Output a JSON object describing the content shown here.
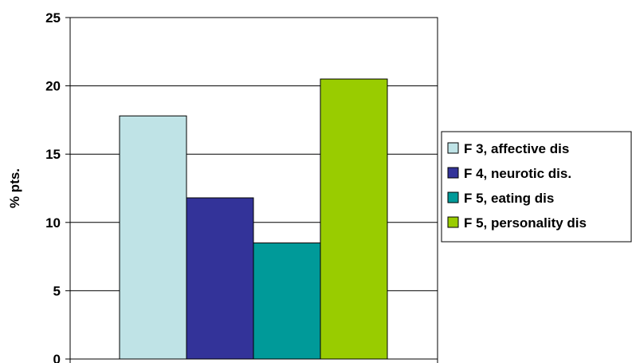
{
  "chart_data": {
    "type": "bar",
    "title": "",
    "xlabel": "",
    "ylabel": "% pts.",
    "ylim": [
      0,
      25
    ],
    "yticks": [
      0,
      5,
      10,
      15,
      20,
      25
    ],
    "categories": [
      ""
    ],
    "grid": true,
    "legend_position": "right",
    "series": [
      {
        "name": "F 3, affective dis",
        "values": [
          17.8
        ],
        "color": "#bfe3e6"
      },
      {
        "name": "F 4, neurotic dis.",
        "values": [
          11.8
        ],
        "color": "#333399"
      },
      {
        "name": "F 5, eating dis",
        "values": [
          8.5
        ],
        "color": "#009a99"
      },
      {
        "name": "F 5, personality dis",
        "values": [
          20.5
        ],
        "color": "#99cc00"
      }
    ]
  }
}
